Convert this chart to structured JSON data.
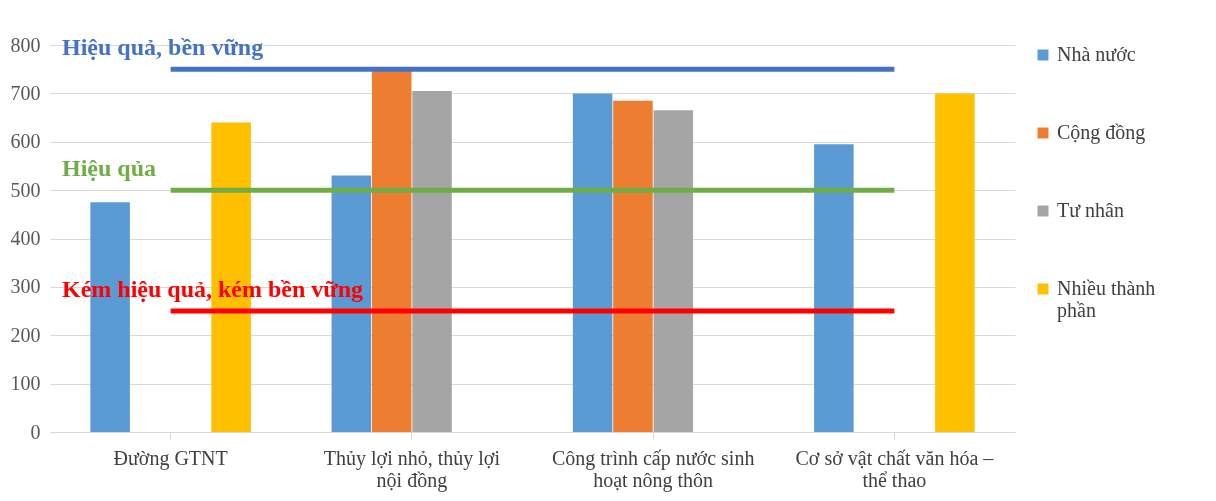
{
  "chart_data": {
    "type": "bar",
    "categories": [
      "Đường GTNT",
      "Thủy lợi nhỏ, thủy lợi nội đồng",
      "Công trình cấp nước sinh hoạt nông thôn",
      "Cơ sở vật chất văn hóa – thể thao"
    ],
    "series": [
      {
        "name": "Nhà nước",
        "color": "#5b9bd5",
        "values": [
          475,
          530,
          700,
          595
        ]
      },
      {
        "name": "Cộng đồng",
        "color": "#ed7d31",
        "values": [
          0,
          750,
          685,
          0
        ]
      },
      {
        "name": "Tư nhân",
        "color": "#a5a5a5",
        "values": [
          0,
          705,
          665,
          0
        ]
      },
      {
        "name": "Nhiều thành phần",
        "color": "#ffc000",
        "values": [
          640,
          0,
          0,
          700
        ]
      }
    ],
    "ylim": [
      0,
      800
    ],
    "yticks": [
      0,
      100,
      200,
      300,
      400,
      500,
      600,
      700,
      800
    ],
    "grid": "y",
    "legend": "right",
    "ref_lines": [
      {
        "axis": "y",
        "value": 750,
        "label": "Hiệu quả, bền vững",
        "color": "#4472c4"
      },
      {
        "axis": "y",
        "value": 500,
        "label": "Hiệu qủa",
        "color": "#70ad47"
      },
      {
        "axis": "y",
        "value": 250,
        "label": "Kém hiệu quả, kém bền vững",
        "color": "#ff0000"
      }
    ]
  }
}
